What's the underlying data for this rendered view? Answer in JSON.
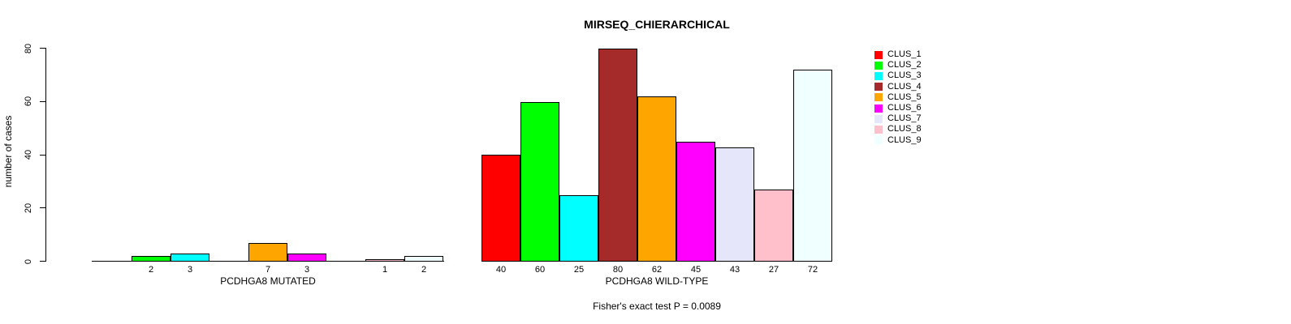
{
  "chart_data": {
    "type": "bar",
    "title": "MIRSEQ_CHIERARCHICAL",
    "ylabel": "number of cases",
    "xlabel": "",
    "ylim": [
      0,
      80
    ],
    "yticks": [
      0,
      20,
      40,
      60,
      80
    ],
    "grid": false,
    "legend_position": "right",
    "categories": [
      "CLUS_1",
      "CLUS_2",
      "CLUS_3",
      "CLUS_4",
      "CLUS_5",
      "CLUS_6",
      "CLUS_7",
      "CLUS_8",
      "CLUS_9"
    ],
    "colors": [
      "#FF0000",
      "#00FF00",
      "#00FFFF",
      "#A52A2A",
      "#FFA500",
      "#FF00FF",
      "#E6E6FA",
      "#FFC0CB",
      "#F0FFFF"
    ],
    "groups": [
      {
        "label": "PCDHGA8 MUTATED",
        "values": [
          0,
          2,
          3,
          0,
          7,
          3,
          0,
          1,
          2
        ]
      },
      {
        "label": "PCDHGA8 WILD-TYPE",
        "values": [
          40,
          60,
          25,
          80,
          62,
          45,
          43,
          27,
          72
        ]
      }
    ],
    "value_labels_shown": "nonzero bars only, printed under each bar",
    "caption": "Fisher's exact test P = 0.0089",
    "legend": [
      {
        "label": "CLUS_1",
        "color": "#FF0000"
      },
      {
        "label": "CLUS_2",
        "color": "#00FF00"
      },
      {
        "label": "CLUS_3",
        "color": "#00FFFF"
      },
      {
        "label": "CLUS_4",
        "color": "#A52A2A"
      },
      {
        "label": "CLUS_5",
        "color": "#FFA500"
      },
      {
        "label": "CLUS_6",
        "color": "#FF00FF"
      },
      {
        "label": "CLUS_7",
        "color": "#E6E6FA"
      },
      {
        "label": "CLUS_8",
        "color": "#FFC0CB"
      },
      {
        "label": "CLUS_9",
        "color": "#F0FFFF"
      }
    ]
  }
}
